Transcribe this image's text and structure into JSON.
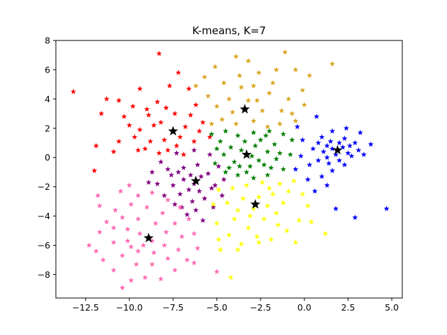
{
  "chart_data": {
    "type": "scatter",
    "title": "K-means, K=7",
    "xlabel": "",
    "ylabel": "",
    "xlim": [
      -14.2,
      5.6
    ],
    "ylim": [
      -9.6,
      8.0
    ],
    "x_ticks": [
      -12.5,
      -10.0,
      -7.5,
      -5.0,
      -2.5,
      0.0,
      2.5,
      5.0
    ],
    "x_tick_labels": [
      "−12.5",
      "−10.0",
      "−7.5",
      "−5.0",
      "−2.5",
      "0.0",
      "2.5",
      "5.0"
    ],
    "y_ticks": [
      -8,
      -6,
      -4,
      -2,
      0,
      2,
      4,
      6,
      8
    ],
    "y_tick_labels": [
      "−8",
      "−6",
      "−4",
      "−2",
      "0",
      "2",
      "4",
      "6",
      "8"
    ],
    "grid": false,
    "marker": "star",
    "clusters": [
      {
        "color": "#ff0000",
        "centroid": [
          -7.5,
          1.8
        ],
        "points": [
          [
            -13.2,
            4.5
          ],
          [
            -11.9,
            0.8
          ],
          [
            -12.0,
            -0.9
          ],
          [
            -11.6,
            3.0
          ],
          [
            -11.3,
            4.0
          ],
          [
            -10.6,
            3.9
          ],
          [
            -10.0,
            2.2
          ],
          [
            -9.4,
            4.7
          ],
          [
            -8.3,
            7.1
          ],
          [
            -9.8,
            3.5
          ],
          [
            -10.6,
            1.1
          ],
          [
            -10.9,
            0.4
          ],
          [
            -9.1,
            0.6
          ],
          [
            -8.9,
            2.9
          ],
          [
            -8.4,
            3.8
          ],
          [
            -7.7,
            4.9
          ],
          [
            -7.2,
            5.8
          ],
          [
            -6.6,
            4.7
          ],
          [
            -6.2,
            3.6
          ],
          [
            -5.8,
            2.4
          ],
          [
            -5.4,
            1.4
          ],
          [
            -6.3,
            1.1
          ],
          [
            -6.9,
            0.2
          ],
          [
            -7.8,
            0.5
          ],
          [
            -8.8,
            1.1
          ],
          [
            -9.4,
            1.9
          ],
          [
            -9.5,
            0.5
          ],
          [
            -8.2,
            2.4
          ],
          [
            -7.4,
            3.0
          ],
          [
            -6.8,
            2.1
          ],
          [
            -7.1,
            1.4
          ],
          [
            -8.0,
            1.2
          ],
          [
            -8.6,
            2.2
          ],
          [
            -9.0,
            3.3
          ],
          [
            -7.9,
            3.4
          ],
          [
            -6.5,
            2.9
          ],
          [
            -6.0,
            1.8
          ],
          [
            -7.3,
            0.8
          ],
          [
            -8.3,
            0.3
          ],
          [
            -10.3,
            2.8
          ],
          [
            -9.7,
            1.4
          ]
        ]
      },
      {
        "color": "#daa520",
        "centroid": [
          -3.4,
          3.3
        ],
        "points": [
          [
            -5.7,
            5.5
          ],
          [
            -6.2,
            4.9
          ],
          [
            -5.1,
            6.2
          ],
          [
            -4.6,
            5.1
          ],
          [
            -3.9,
            6.9
          ],
          [
            -3.2,
            6.6
          ],
          [
            -2.6,
            5.8
          ],
          [
            -1.6,
            6.0
          ],
          [
            -1.1,
            7.2
          ],
          [
            -0.5,
            6.0
          ],
          [
            0.3,
            5.6
          ],
          [
            1.6,
            6.4
          ],
          [
            -0.1,
            4.6
          ],
          [
            0.0,
            3.6
          ],
          [
            -0.5,
            2.5
          ],
          [
            -1.3,
            3.2
          ],
          [
            -2.0,
            4.4
          ],
          [
            -2.7,
            3.9
          ],
          [
            -3.6,
            4.8
          ],
          [
            -4.3,
            4.0
          ],
          [
            -5.0,
            3.5
          ],
          [
            -5.5,
            4.2
          ],
          [
            -4.7,
            2.6
          ],
          [
            -3.9,
            2.3
          ],
          [
            -2.9,
            2.5
          ],
          [
            -2.1,
            2.1
          ],
          [
            -1.4,
            2.3
          ],
          [
            -0.9,
            4.0
          ],
          [
            -2.4,
            3.2
          ],
          [
            -3.2,
            3.9
          ],
          [
            -4.1,
            3.1
          ],
          [
            -5.3,
            2.3
          ],
          [
            -1.8,
            5.1
          ],
          [
            -0.7,
            3.0
          ],
          [
            -2.9,
            4.9
          ],
          [
            -3.7,
            5.6
          ]
        ]
      },
      {
        "color": "#0000ff",
        "centroid": [
          1.9,
          0.5
        ],
        "points": [
          [
            0.7,
            2.8
          ],
          [
            -0.4,
            2.1
          ],
          [
            -0.2,
            0.1
          ],
          [
            -0.5,
            -0.8
          ],
          [
            0.2,
            -1.5
          ],
          [
            0.6,
            -2.3
          ],
          [
            1.3,
            -1.9
          ],
          [
            1.0,
            -1.3
          ],
          [
            1.6,
            -0.9
          ],
          [
            1.8,
            -3.5
          ],
          [
            2.9,
            -4.1
          ],
          [
            4.7,
            -3.5
          ],
          [
            3.8,
            0.9
          ],
          [
            3.2,
            1.7
          ],
          [
            2.4,
            2.0
          ],
          [
            1.6,
            1.8
          ],
          [
            1.0,
            1.4
          ],
          [
            0.5,
            0.6
          ],
          [
            0.8,
            -0.2
          ],
          [
            1.3,
            0.0
          ],
          [
            2.0,
            -0.2
          ],
          [
            2.7,
            0.1
          ],
          [
            3.1,
            0.5
          ],
          [
            2.9,
            1.0
          ],
          [
            2.3,
            1.3
          ],
          [
            1.5,
            1.1
          ],
          [
            1.1,
            0.4
          ],
          [
            1.6,
            0.6
          ],
          [
            2.2,
            0.7
          ],
          [
            2.5,
            0.3
          ],
          [
            1.8,
            0.2
          ],
          [
            1.3,
            0.8
          ],
          [
            2.0,
            1.0
          ],
          [
            2.6,
            0.8
          ],
          [
            3.4,
            0.2
          ],
          [
            0.8,
            1.0
          ],
          [
            1.4,
            -0.4
          ],
          [
            2.3,
            -0.5
          ],
          [
            -0.1,
            1.2
          ],
          [
            0.3,
            -0.5
          ]
        ]
      },
      {
        "color": "#008000",
        "centroid": [
          -3.3,
          0.2
        ],
        "points": [
          [
            -5.3,
            1.6
          ],
          [
            -5.0,
            0.6
          ],
          [
            -5.1,
            -0.4
          ],
          [
            -4.5,
            -1.0
          ],
          [
            -3.8,
            -1.2
          ],
          [
            -2.9,
            -1.4
          ],
          [
            -2.1,
            -1.2
          ],
          [
            -1.2,
            -0.8
          ],
          [
            -0.8,
            0.2
          ],
          [
            -0.7,
            1.2
          ],
          [
            -1.2,
            1.6
          ],
          [
            -2.0,
            1.8
          ],
          [
            -2.9,
            1.7
          ],
          [
            -3.8,
            1.5
          ],
          [
            -4.5,
            1.8
          ],
          [
            -4.2,
            0.7
          ],
          [
            -3.6,
            0.5
          ],
          [
            -2.8,
            0.8
          ],
          [
            -2.1,
            0.4
          ],
          [
            -1.6,
            -0.1
          ],
          [
            -2.3,
            -0.5
          ],
          [
            -3.1,
            -0.6
          ],
          [
            -4.0,
            -0.3
          ],
          [
            -4.6,
            0.2
          ],
          [
            -3.4,
            1.1
          ],
          [
            -2.5,
            1.2
          ],
          [
            -1.7,
            0.9
          ],
          [
            -1.4,
            0.3
          ],
          [
            -2.6,
            -0.2
          ],
          [
            -3.7,
            -0.6
          ],
          [
            -4.3,
            -0.7
          ],
          [
            -3.0,
            0.1
          ],
          [
            -1.9,
            -0.7
          ],
          [
            -4.8,
            1.1
          ],
          [
            -3.3,
            -1.0
          ],
          [
            -2.2,
            1.5
          ]
        ]
      },
      {
        "color": "#800080",
        "centroid": [
          -6.2,
          -1.6
        ],
        "points": [
          [
            -8.7,
            -1.0
          ],
          [
            -8.2,
            -0.3
          ],
          [
            -7.3,
            0.3
          ],
          [
            -6.3,
            0.5
          ],
          [
            -5.4,
            0.2
          ],
          [
            -4.9,
            -0.6
          ],
          [
            -4.6,
            -1.5
          ],
          [
            -4.7,
            -2.6
          ],
          [
            -5.2,
            -3.4
          ],
          [
            -5.8,
            -4.3
          ],
          [
            -6.7,
            -3.9
          ],
          [
            -7.4,
            -3.2
          ],
          [
            -8.0,
            -2.6
          ],
          [
            -8.4,
            -1.8
          ],
          [
            -7.6,
            -1.2
          ],
          [
            -6.9,
            -0.7
          ],
          [
            -6.1,
            -0.5
          ],
          [
            -5.5,
            -1.1
          ],
          [
            -5.3,
            -2.1
          ],
          [
            -5.7,
            -2.8
          ],
          [
            -6.4,
            -3.0
          ],
          [
            -7.1,
            -2.5
          ],
          [
            -7.5,
            -1.9
          ],
          [
            -6.9,
            -1.5
          ],
          [
            -6.3,
            -1.8
          ],
          [
            -6.0,
            -2.3
          ],
          [
            -6.6,
            -2.2
          ],
          [
            -7.2,
            -1.0
          ],
          [
            -5.9,
            -1.3
          ],
          [
            -6.5,
            -1.2
          ],
          [
            -7.8,
            -0.8
          ],
          [
            -5.1,
            -1.9
          ],
          [
            -6.2,
            -3.6
          ],
          [
            -8.9,
            -1.7
          ],
          [
            -7.0,
            -3.4
          ]
        ]
      },
      {
        "color": "#ffff00",
        "centroid": [
          -2.8,
          -3.2
        ],
        "points": [
          [
            -4.9,
            -2.2
          ],
          [
            -5.2,
            -3.2
          ],
          [
            -5.0,
            -4.5
          ],
          [
            -4.3,
            -5.3
          ],
          [
            -3.6,
            -5.9
          ],
          [
            -2.7,
            -5.4
          ],
          [
            -1.9,
            -5.6
          ],
          [
            -1.0,
            -5.0
          ],
          [
            -0.3,
            -4.3
          ],
          [
            0.4,
            -4.4
          ],
          [
            1.2,
            -5.2
          ],
          [
            -0.5,
            -5.8
          ],
          [
            -2.6,
            -5.8
          ],
          [
            -4.9,
            -5.6
          ],
          [
            -4.8,
            -6.3
          ],
          [
            -3.8,
            -6.3
          ],
          [
            -4.2,
            -8.2
          ],
          [
            -0.1,
            -2.5
          ],
          [
            -0.6,
            -1.6
          ],
          [
            -1.4,
            -1.8
          ],
          [
            -2.4,
            -1.7
          ],
          [
            -3.3,
            -1.9
          ],
          [
            -4.1,
            -2.1
          ],
          [
            -4.4,
            -3.1
          ],
          [
            -3.8,
            -3.6
          ],
          [
            -3.1,
            -4.0
          ],
          [
            -2.3,
            -4.2
          ],
          [
            -1.6,
            -3.8
          ],
          [
            -1.2,
            -3.1
          ],
          [
            -1.8,
            -2.5
          ],
          [
            -2.6,
            -2.7
          ],
          [
            -3.5,
            -2.8
          ],
          [
            -2.9,
            -3.5
          ],
          [
            -2.1,
            -3.3
          ],
          [
            -1.5,
            -4.6
          ],
          [
            -3.2,
            -4.8
          ],
          [
            -4.0,
            -4.2
          ],
          [
            -0.9,
            -2.3
          ],
          [
            -2.0,
            -2.1
          ],
          [
            0.2,
            -3.3
          ]
        ]
      },
      {
        "color": "#ff69b4",
        "centroid": [
          -8.9,
          -5.5
        ],
        "points": [
          [
            -12.3,
            -6.0
          ],
          [
            -11.7,
            -3.3
          ],
          [
            -11.8,
            -2.6
          ],
          [
            -11.3,
            -4.4
          ],
          [
            -10.5,
            -2.3
          ],
          [
            -10.0,
            -1.9
          ],
          [
            -9.5,
            -2.6
          ],
          [
            -8.7,
            -2.4
          ],
          [
            -7.8,
            -2.9
          ],
          [
            -7.1,
            -3.4
          ],
          [
            -6.6,
            -4.2
          ],
          [
            -6.3,
            -5.2
          ],
          [
            -6.1,
            -6.2
          ],
          [
            -6.7,
            -7.0
          ],
          [
            -7.4,
            -7.7
          ],
          [
            -8.2,
            -8.3
          ],
          [
            -9.1,
            -8.2
          ],
          [
            -9.9,
            -8.4
          ],
          [
            -10.4,
            -8.9
          ],
          [
            -10.9,
            -7.7
          ],
          [
            -11.5,
            -7.0
          ],
          [
            -11.9,
            -6.4
          ],
          [
            -11.7,
            -5.1
          ],
          [
            -10.8,
            -3.6
          ],
          [
            -9.9,
            -3.2
          ],
          [
            -9.0,
            -3.4
          ],
          [
            -8.1,
            -3.8
          ],
          [
            -7.4,
            -4.5
          ],
          [
            -7.0,
            -5.4
          ],
          [
            -7.2,
            -6.3
          ],
          [
            -7.8,
            -6.9
          ],
          [
            -8.7,
            -7.3
          ],
          [
            -9.6,
            -7.3
          ],
          [
            -10.4,
            -6.7
          ],
          [
            -10.9,
            -5.8
          ],
          [
            -10.9,
            -4.8
          ],
          [
            -10.4,
            -4.1
          ],
          [
            -9.5,
            -4.2
          ],
          [
            -8.5,
            -4.5
          ],
          [
            -7.9,
            -5.1
          ],
          [
            -8.0,
            -6.0
          ],
          [
            -8.6,
            -6.5
          ],
          [
            -9.5,
            -6.4
          ],
          [
            -10.1,
            -5.7
          ],
          [
            -10.1,
            -4.9
          ],
          [
            -9.4,
            -5.2
          ],
          [
            -8.7,
            -5.7
          ],
          [
            -9.2,
            -6.0
          ],
          [
            -9.9,
            -6.1
          ],
          [
            -5.0,
            -7.8
          ],
          [
            -6.3,
            -7.2
          ]
        ]
      }
    ]
  }
}
